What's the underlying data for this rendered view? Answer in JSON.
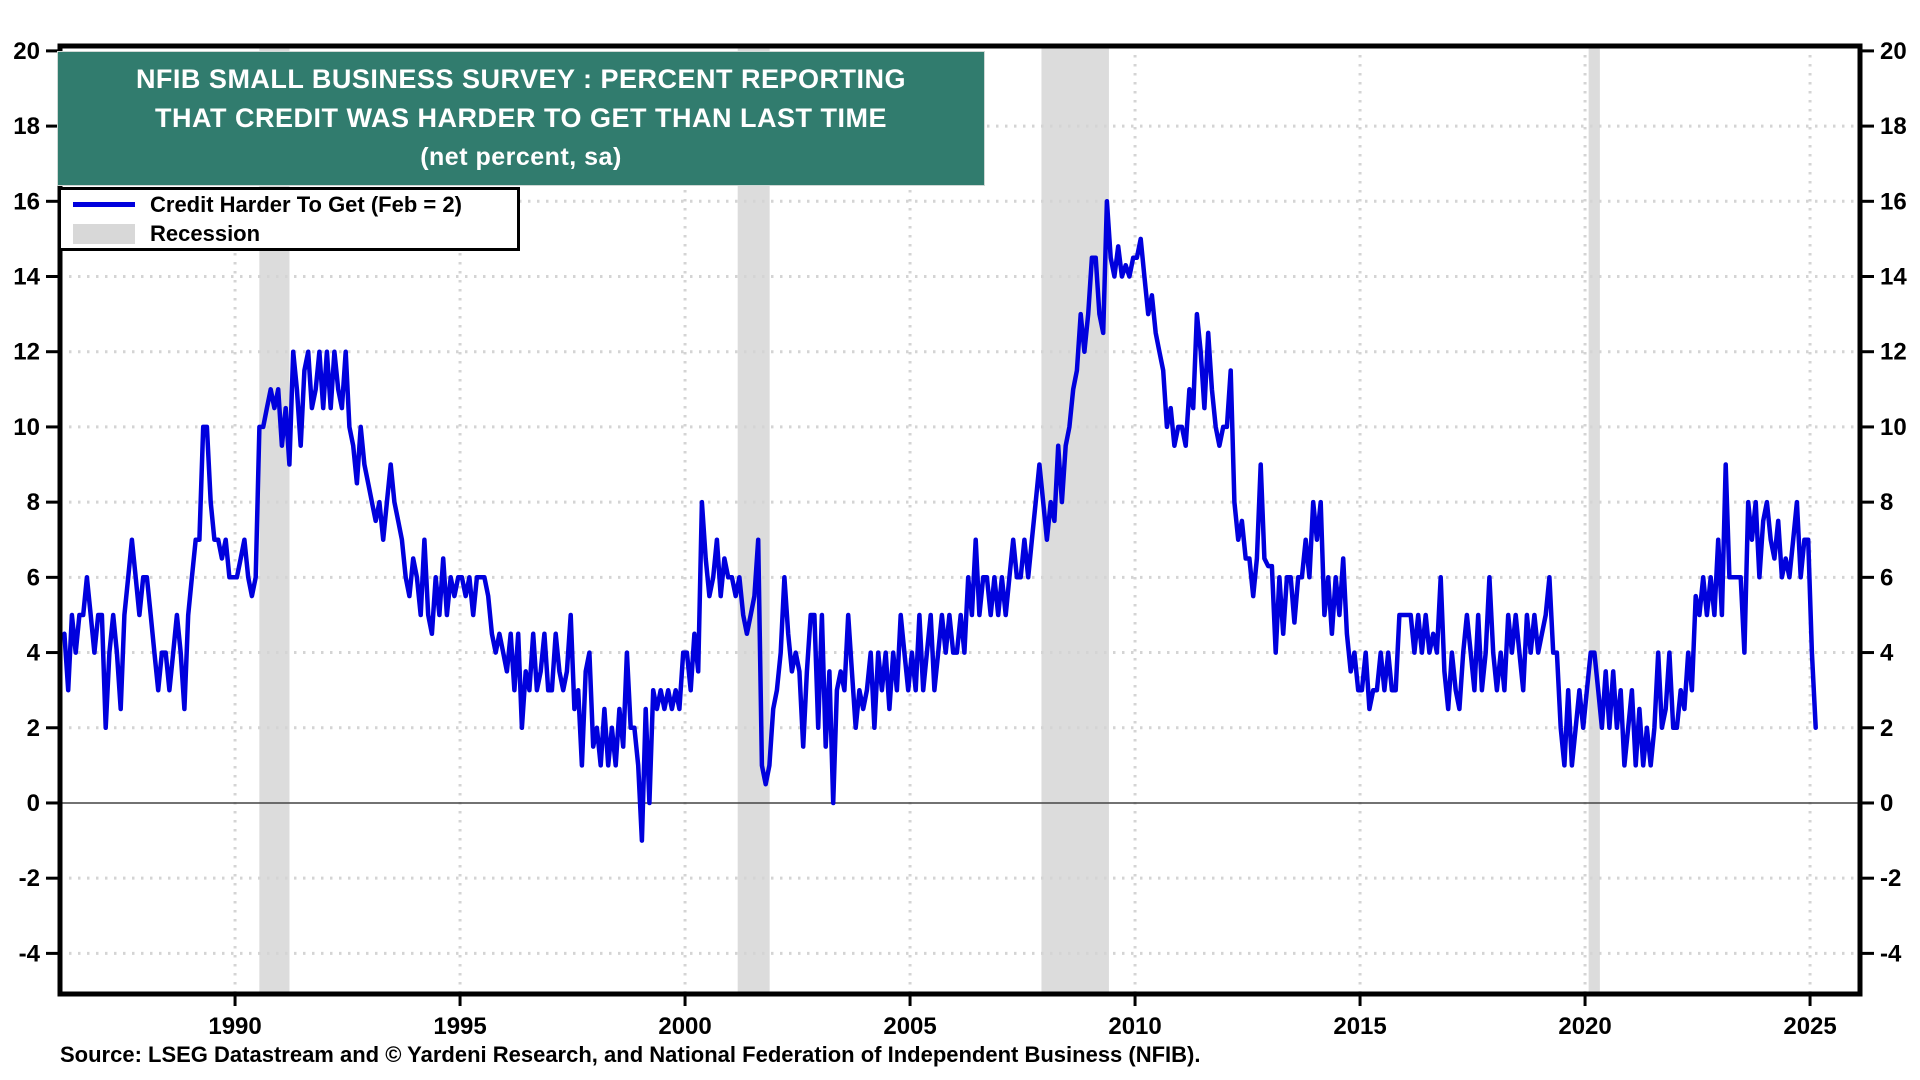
{
  "title": {
    "lines": [
      "NFIB SMALL BUSINESS SURVEY : PERCENT REPORTING",
      "THAT CREDIT WAS HARDER TO GET THAN LAST TIME",
      "(net percent, sa)"
    ],
    "bg_color": "#317c6e"
  },
  "legend": {
    "items": [
      {
        "label": "Credit Harder To Get (Feb = 2)",
        "swatch": "line",
        "color": "#0000dd"
      },
      {
        "label": "Recession",
        "swatch": "box",
        "color": "#d8d8d8"
      }
    ]
  },
  "source": {
    "text": "Source: LSEG Datastream and © Yardeni Research, and National Federation of Independent Business (NFIB)."
  },
  "chart_data": {
    "type": "line",
    "title": "NFIB Small Business Survey: Percent Reporting That Credit Was Harder To Get Than Last Time (net percent, sa)",
    "x_axis": {
      "ticks": [
        1990,
        1995,
        2000,
        2005,
        2010,
        2015,
        2020,
        2025
      ],
      "range": [
        1986.11,
        2026.11
      ],
      "gridlines": "dotted"
    },
    "y_axis": {
      "ticks": [
        20,
        18,
        16,
        14,
        12,
        10,
        8,
        6,
        4,
        2,
        0,
        -2,
        -4
      ],
      "range": [
        -5.08,
        20.13
      ],
      "gridlines": "dotted",
      "zero_line": true,
      "labels_both_sides": true
    },
    "line_color": "#0000dd",
    "grid_color": "#d4d4d4",
    "recession_color": "#dcdcdc",
    "recessions": [
      [
        1990.54,
        1991.21
      ],
      [
        2001.17,
        2001.88
      ],
      [
        2007.92,
        2009.42
      ],
      [
        2020.08,
        2020.33
      ]
    ],
    "series": [
      {
        "name": "Credit Harder To Get (Feb = 2)",
        "start": "1986-03",
        "frequency": "monthly",
        "end": "2025-02",
        "last_value_note": "Feb = 2",
        "values": [
          4.5,
          3,
          5,
          4,
          5,
          5,
          6,
          5,
          4,
          5,
          5,
          2,
          4,
          5,
          4,
          2.5,
          5,
          6,
          7,
          6,
          5,
          6,
          6,
          5,
          4,
          3,
          4,
          4,
          3,
          4,
          5,
          4,
          2.5,
          5,
          6,
          7,
          7,
          10,
          10,
          8,
          7,
          7,
          6.5,
          7,
          6,
          6,
          6,
          6.5,
          7,
          6,
          5.5,
          6,
          10,
          10,
          10.5,
          11,
          10.5,
          11,
          9.5,
          10.5,
          9,
          12,
          11,
          9.5,
          11.5,
          12,
          10.5,
          11,
          12,
          10.5,
          12,
          10.5,
          12,
          11,
          10.5,
          12,
          10,
          9.5,
          8.5,
          10,
          9,
          8.5,
          8,
          7.5,
          8,
          7,
          8,
          9,
          8,
          7.5,
          7,
          6,
          5.5,
          6.5,
          6,
          5,
          7,
          5,
          4.5,
          6,
          5,
          6.5,
          5,
          6,
          5.5,
          6,
          6,
          5.5,
          6,
          5,
          6,
          6,
          6,
          5.5,
          4.5,
          4,
          4.5,
          4,
          3.5,
          4.5,
          3,
          4.5,
          2,
          3.5,
          3,
          4.5,
          3,
          3.5,
          4.5,
          3,
          3,
          4.5,
          3.5,
          3,
          3.5,
          5,
          2.5,
          3,
          1,
          3.5,
          4,
          1.5,
          2,
          1,
          2.5,
          1,
          2,
          1,
          2.5,
          1.5,
          4,
          2,
          2,
          1,
          -1,
          2.5,
          0,
          3,
          2.5,
          3,
          2.5,
          3,
          2.5,
          3,
          2.5,
          4,
          4,
          3,
          4.5,
          3.5,
          8,
          6.5,
          5.5,
          6,
          7,
          5.5,
          6.5,
          6,
          6,
          5.5,
          6,
          5,
          4.5,
          5,
          5.5,
          7,
          1,
          0.5,
          1,
          2.5,
          3,
          4,
          6,
          4.5,
          3.5,
          4,
          3.5,
          1.5,
          3.5,
          5,
          5,
          2,
          5,
          1.5,
          3.5,
          0,
          3,
          3.5,
          3,
          5,
          3.5,
          2,
          3,
          2.5,
          3,
          4,
          2,
          4,
          3,
          4,
          2.5,
          4,
          3,
          5,
          4,
          3,
          4,
          3,
          5,
          3,
          4,
          5,
          3,
          4,
          5,
          4,
          5,
          4,
          4,
          5,
          4,
          6,
          5,
          7,
          5,
          6,
          6,
          5,
          6,
          5,
          6,
          5,
          6,
          7,
          6,
          6,
          7,
          6,
          7,
          8,
          9,
          8,
          7,
          8,
          7.5,
          9.5,
          8,
          9.5,
          10,
          11,
          11.5,
          13,
          12,
          13,
          14.5,
          14.5,
          13,
          12.5,
          16,
          14.5,
          14,
          14.8,
          14,
          14.3,
          14,
          14.5,
          14.5,
          15,
          14,
          13,
          13.5,
          12.5,
          12,
          11.5,
          10,
          10.5,
          9.5,
          10,
          10,
          9.5,
          11,
          10.5,
          13,
          12,
          10.5,
          12.5,
          11,
          10,
          9.5,
          10,
          10,
          11.5,
          8,
          7,
          7.5,
          6.5,
          6.5,
          5.5,
          6.5,
          9,
          6.5,
          6.3,
          6.3,
          4,
          6,
          4.5,
          6,
          6,
          4.8,
          6,
          6,
          7,
          6,
          8,
          7,
          8,
          5,
          6,
          4.5,
          6,
          5,
          6.5,
          4.5,
          3.5,
          4,
          3,
          3,
          4,
          2.5,
          3,
          3,
          4,
          3,
          4,
          3,
          3,
          5,
          5,
          5,
          5,
          4,
          5,
          4,
          5,
          4,
          4.5,
          4,
          6,
          3.5,
          2.5,
          4,
          3,
          2.5,
          4,
          5,
          4,
          3,
          5,
          3,
          4,
          6,
          4,
          3,
          4,
          3,
          5,
          4,
          5,
          4,
          3,
          5,
          4,
          5,
          4,
          4.5,
          5,
          6,
          4,
          4,
          2,
          1,
          3,
          1,
          2,
          3,
          2,
          3,
          4,
          4,
          3,
          2,
          3.5,
          2,
          3.5,
          2,
          3,
          1,
          2,
          3,
          1,
          2.5,
          1,
          2,
          1,
          2,
          4,
          2,
          2.5,
          4,
          2,
          2,
          3,
          2.5,
          4,
          3,
          5.5,
          5,
          6,
          5,
          6,
          5,
          7,
          5,
          9,
          6,
          6,
          6,
          6,
          4,
          8,
          7,
          8,
          6,
          7.5,
          8,
          7,
          6.5,
          7.5,
          6,
          6.5,
          6,
          7,
          8,
          6,
          7,
          7,
          4,
          2
        ]
      }
    ]
  }
}
